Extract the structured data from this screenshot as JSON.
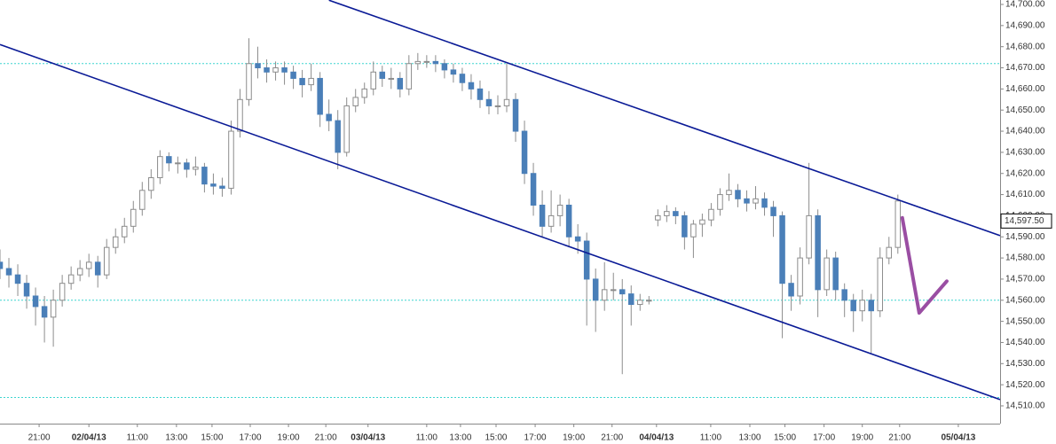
{
  "chart_data": {
    "type": "candlestick",
    "xlim": [
      0,
      225
    ],
    "xticks": [
      {
        "value": 8.8,
        "label": "21:00"
      },
      {
        "value": 20,
        "label": "02/04/13"
      },
      {
        "value": 30.9,
        "label": "11:00"
      },
      {
        "value": 39.7,
        "label": "13:00"
      },
      {
        "value": 47.7,
        "label": "15:00"
      },
      {
        "value": 56.3,
        "label": "17:00"
      },
      {
        "value": 64.9,
        "label": "19:00"
      },
      {
        "value": 73.3,
        "label": "21:00"
      },
      {
        "value": 82.8,
        "label": "03/04/13"
      },
      {
        "value": 96,
        "label": "11:00"
      },
      {
        "value": 103.6,
        "label": "13:00"
      },
      {
        "value": 111.6,
        "label": "15:00"
      },
      {
        "value": 120.4,
        "label": "17:00"
      },
      {
        "value": 129.1,
        "label": "19:00"
      },
      {
        "value": 137.7,
        "label": "21:00"
      },
      {
        "value": 147.7,
        "label": "04/04/13"
      },
      {
        "value": 159.9,
        "label": "11:00"
      },
      {
        "value": 168.7,
        "label": "13:00"
      },
      {
        "value": 176.6,
        "label": "15:00"
      },
      {
        "value": 185.4,
        "label": "17:00"
      },
      {
        "value": 194,
        "label": "19:00"
      },
      {
        "value": 202.4,
        "label": "21:00"
      },
      {
        "value": 215.6,
        "label": "05/04/13"
      }
    ],
    "ylim": [
      14501.6,
      14702.1
    ],
    "yticks": [
      {
        "value": 14510,
        "label": "14,510.00"
      },
      {
        "value": 14520,
        "label": "14,520.00"
      },
      {
        "value": 14530,
        "label": "14,530.00"
      },
      {
        "value": 14540,
        "label": "14,540.00"
      },
      {
        "value": 14550,
        "label": "14,550.00"
      },
      {
        "value": 14560,
        "label": "14,560.00"
      },
      {
        "value": 14570,
        "label": "14,570.00"
      },
      {
        "value": 14580,
        "label": "14,580.00"
      },
      {
        "value": 14590,
        "label": "14,590.00"
      },
      {
        "value": 14600,
        "label": "14,600.00"
      },
      {
        "value": 14610,
        "label": "14,610.00"
      },
      {
        "value": 14620,
        "label": "14,620.00"
      },
      {
        "value": 14630,
        "label": "14,630.00"
      },
      {
        "value": 14640,
        "label": "14,640.00"
      },
      {
        "value": 14650,
        "label": "14,650.00"
      },
      {
        "value": 14660,
        "label": "14,660.00"
      },
      {
        "value": 14670,
        "label": "14,670.00"
      },
      {
        "value": 14680,
        "label": "14,680.00"
      },
      {
        "value": 14690,
        "label": "14,690.00"
      },
      {
        "value": 14700,
        "label": "14,700.00"
      }
    ],
    "up_color": "#ffffff",
    "down_color": "#4a7fb8",
    "wick_color": "#8c8c8c",
    "candles": {
      "x": [
        0,
        2,
        4,
        6,
        8,
        10,
        12,
        14,
        16,
        18,
        20,
        22,
        24,
        26,
        28,
        30,
        32,
        34,
        36,
        38,
        40,
        42,
        44,
        46,
        48,
        50,
        52,
        54,
        56,
        58,
        60,
        62,
        64,
        66,
        68,
        70,
        72,
        74,
        76,
        78,
        80,
        82,
        84,
        86,
        88,
        90,
        92,
        94,
        96,
        98,
        100,
        102,
        104,
        106,
        108,
        110,
        112,
        114,
        116,
        118,
        120,
        122,
        124,
        126,
        128,
        130,
        132,
        134,
        136,
        138,
        140,
        142,
        144,
        146,
        148,
        150,
        152,
        154,
        156,
        158,
        160,
        162,
        164,
        166,
        168,
        170,
        172,
        174,
        176,
        178,
        180,
        182,
        184,
        186,
        188,
        190,
        192,
        194,
        196,
        198,
        200,
        202
      ],
      "open": [
        14578,
        14575,
        14572,
        14568,
        14562,
        14557,
        14552,
        14560,
        14568,
        14572,
        14575,
        14578,
        14572,
        14585,
        14590,
        14595,
        14603,
        14612,
        14618,
        14628,
        14625,
        14625,
        14622,
        14623,
        14615,
        14614,
        14613,
        14640,
        14655,
        14672,
        14670,
        14668,
        14670,
        14668,
        14665,
        14662,
        14665,
        14648,
        14645,
        14630,
        14652,
        14656,
        14660,
        14668,
        14665,
        14665,
        14660,
        14672,
        14673,
        14673,
        14672,
        14669,
        14667,
        14663,
        14660,
        14655,
        14652,
        14652,
        14655,
        14640,
        14620,
        14605,
        14595,
        14600,
        14605,
        14590,
        14588,
        14570,
        14560,
        14565,
        14565,
        14563,
        14558,
        14560,
        14598,
        14600,
        14602,
        14600,
        14590,
        14596,
        14598,
        14603,
        14610,
        14612,
        14608,
        14606,
        14608,
        14604,
        14600,
        14568,
        14562,
        14580,
        14600,
        14565,
        14580,
        14565,
        14560,
        14555,
        14560,
        14555,
        14580,
        14585
      ],
      "high": [
        14584,
        14580,
        14577,
        14572,
        14566,
        14562,
        14565,
        14572,
        14576,
        14579,
        14582,
        14581,
        14589,
        14594,
        14599,
        14607,
        14616,
        14622,
        14631,
        14630,
        14628,
        14627,
        14628,
        14625,
        14620,
        14618,
        14645,
        14660,
        14684,
        14680,
        14674,
        14673,
        14673,
        14671,
        14669,
        14672,
        14668,
        14655,
        14650,
        14656,
        14660,
        14663,
        14673,
        14671,
        14670,
        14668,
        14676,
        14677,
        14676,
        14676,
        14674,
        14672,
        14670,
        14667,
        14664,
        14659,
        14657,
        14672,
        14658,
        14645,
        14625,
        14612,
        14612,
        14610,
        14608,
        14596,
        14592,
        14575,
        14578,
        14573,
        14570,
        14567,
        14563,
        14562,
        14603,
        14605,
        14604,
        14602,
        14598,
        14601,
        14606,
        14613,
        14620,
        14615,
        14612,
        14614,
        14611,
        14607,
        14602,
        14572,
        14585,
        14625,
        14603,
        14584,
        14583,
        14568,
        14563,
        14565,
        14563,
        14585,
        14590,
        14610
      ],
      "low": [
        14570,
        14566,
        14562,
        14556,
        14548,
        14540,
        14538,
        14557,
        14565,
        14569,
        14571,
        14566,
        14570,
        14582,
        14587,
        14592,
        14600,
        14608,
        14615,
        14621,
        14620,
        14618,
        14619,
        14611,
        14610,
        14609,
        14610,
        14637,
        14652,
        14665,
        14663,
        14664,
        14662,
        14660,
        14656,
        14659,
        14642,
        14640,
        14622,
        14628,
        14649,
        14653,
        14657,
        14661,
        14660,
        14656,
        14657,
        14669,
        14670,
        14668,
        14665,
        14663,
        14659,
        14655,
        14651,
        14648,
        14648,
        14649,
        14635,
        14615,
        14600,
        14590,
        14592,
        14595,
        14585,
        14582,
        14548,
        14545,
        14555,
        14560,
        14525,
        14548,
        14555,
        14558,
        14595,
        14597,
        14596,
        14584,
        14580,
        14590,
        14595,
        14600,
        14607,
        14604,
        14602,
        14603,
        14600,
        14590,
        14542,
        14555,
        14558,
        14577,
        14552,
        14562,
        14560,
        14552,
        14545,
        14550,
        14535,
        14552,
        14577,
        14582
      ],
      "close": [
        14575,
        14572,
        14568,
        14562,
        14557,
        14552,
        14560,
        14568,
        14572,
        14575,
        14578,
        14572,
        14585,
        14590,
        14595,
        14603,
        14612,
        14618,
        14628,
        14625,
        14625,
        14622,
        14623,
        14615,
        14614,
        14613,
        14640,
        14655,
        14672,
        14670,
        14668,
        14670,
        14668,
        14665,
        14662,
        14665,
        14648,
        14645,
        14630,
        14652,
        14656,
        14660,
        14668,
        14665,
        14665,
        14660,
        14672,
        14673,
        14673,
        14672,
        14669,
        14667,
        14663,
        14660,
        14655,
        14652,
        14652,
        14655,
        14640,
        14620,
        14605,
        14595,
        14600,
        14605,
        14590,
        14588,
        14570,
        14560,
        14565,
        14565,
        14563,
        14558,
        14560,
        14560,
        14600,
        14602,
        14600,
        14590,
        14596,
        14598,
        14603,
        14610,
        14612,
        14608,
        14606,
        14608,
        14604,
        14600,
        14568,
        14562,
        14580,
        14600,
        14565,
        14580,
        14565,
        14560,
        14555,
        14560,
        14555,
        14580,
        14585,
        14607
      ]
    },
    "hlines": {
      "values": [
        14672,
        14560,
        14514
      ],
      "color": "#3fd6d0"
    },
    "trendlines": {
      "color": "#0a1a96",
      "lines": [
        {
          "x": [
            74,
            225
          ],
          "y": [
            14702,
            14590.6
          ]
        },
        {
          "x": [
            0,
            225
          ],
          "y": [
            14681,
            14513
          ]
        }
      ]
    },
    "annotation": {
      "color": "#9a4ea3",
      "x": [
        203,
        206.8,
        213
      ],
      "y": [
        14599,
        14554,
        14569
      ]
    },
    "price_label": {
      "value": 14597.5,
      "label": "14,597.50"
    }
  }
}
